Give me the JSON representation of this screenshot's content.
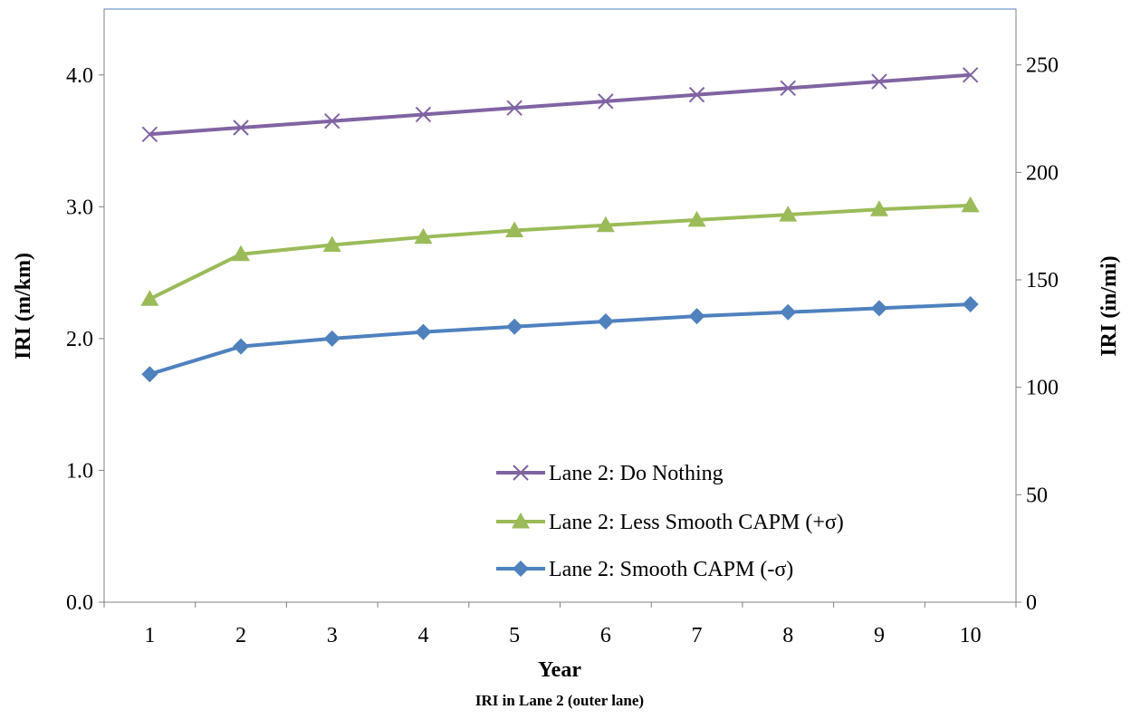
{
  "chart_data": {
    "type": "line",
    "title": "",
    "caption": "IRI in Lane 2 (outer lane)",
    "xlabel": "Year",
    "ylabel": "IRI (m/km)",
    "y2label": "IRI (in/mi)",
    "x": [
      1,
      2,
      3,
      4,
      5,
      6,
      7,
      8,
      9,
      10
    ],
    "xticks": [
      "1",
      "2",
      "3",
      "4",
      "5",
      "6",
      "7",
      "8",
      "9",
      "10"
    ],
    "ylim": [
      0,
      4.5
    ],
    "yticks": [
      "0.0",
      "1.0",
      "2.0",
      "3.0",
      "4.0"
    ],
    "y2lim": [
      0,
      276
    ],
    "y2ticks": [
      "0",
      "50",
      "100",
      "150",
      "200",
      "250"
    ],
    "grid": false,
    "legend_position": "bottom-center",
    "series": [
      {
        "name": "Lane 2: Do Nothing",
        "marker": "x",
        "color": "#8064A2",
        "values": [
          3.55,
          3.6,
          3.65,
          3.7,
          3.75,
          3.8,
          3.85,
          3.9,
          3.95,
          4.0
        ]
      },
      {
        "name": "Lane 2: Less Smooth CAPM (+σ)",
        "marker": "triangle",
        "color": "#9BBB59",
        "values": [
          2.3,
          2.64,
          2.71,
          2.77,
          2.82,
          2.86,
          2.9,
          2.94,
          2.98,
          3.01
        ]
      },
      {
        "name": "Lane 2: Smooth CAPM (-σ)",
        "marker": "diamond",
        "color": "#4F81BD",
        "values": [
          1.73,
          1.94,
          2.0,
          2.05,
          2.09,
          2.13,
          2.17,
          2.2,
          2.23,
          2.26
        ]
      }
    ]
  }
}
